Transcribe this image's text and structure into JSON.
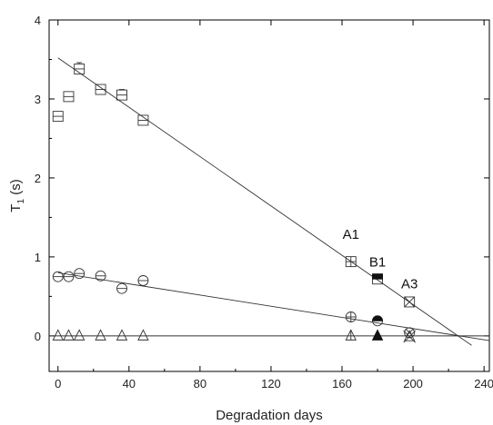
{
  "chart_data": {
    "type": "scatter",
    "title": "",
    "xlabel": "Degradation days",
    "ylabel": "T₁ (s)",
    "ylabel_main": "T",
    "ylabel_sub": "1",
    "ylabel_unit": " (s)",
    "xlim": [
      -5,
      243
    ],
    "ylim": [
      -0.45,
      4.0
    ],
    "xticks": [
      0,
      40,
      80,
      120,
      160,
      200,
      240
    ],
    "yticks": [
      0,
      1,
      2,
      3,
      4
    ],
    "grid": false,
    "legend": "none",
    "series": [
      {
        "marker": "square",
        "x": [
          0,
          6,
          12,
          24,
          36,
          48
        ],
        "y": [
          2.78,
          3.03,
          3.38,
          3.12,
          3.05,
          2.73
        ],
        "err": [
          0,
          0,
          0.08,
          0,
          0.07,
          0
        ],
        "fit": [
          [
            0,
            3.52
          ],
          [
            233,
            -0.12
          ]
        ]
      },
      {
        "marker": "circle",
        "x": [
          0,
          6,
          12,
          24,
          36,
          48
        ],
        "y": [
          0.75,
          0.75,
          0.79,
          0.76,
          0.6,
          0.7
        ],
        "err": [
          0,
          0,
          0,
          0,
          0,
          0
        ],
        "fit": [
          [
            0,
            0.8
          ],
          [
            243,
            -0.06
          ]
        ]
      },
      {
        "marker": "triangle",
        "x": [
          0,
          6,
          12,
          24,
          36,
          48
        ],
        "y": [
          0.0,
          0.0,
          0.0,
          0.0,
          0.0,
          0.0
        ],
        "err": [
          0,
          0,
          0,
          0,
          0,
          0
        ],
        "fit": [
          [
            -5,
            0.0
          ],
          [
            243,
            0.0
          ]
        ]
      },
      {
        "name": "A1",
        "x": [
          165,
          165,
          165
        ],
        "y": [
          0.94,
          0.24,
          0.0
        ],
        "markers": [
          "square-plus",
          "circle-plus",
          "triangle-vline"
        ]
      },
      {
        "name": "B1",
        "x": [
          180,
          180,
          180
        ],
        "y": [
          0.72,
          0.19,
          0.0
        ],
        "markers": [
          "square-half",
          "circle-half",
          "triangle-filled"
        ]
      },
      {
        "name": "A3",
        "x": [
          198,
          198,
          198
        ],
        "y": [
          0.43,
          0.04,
          -0.01
        ],
        "markers": [
          "square-x",
          "circle-x",
          "triangle-x"
        ]
      }
    ],
    "annotations": [
      {
        "text": "A1",
        "x": 165,
        "y": 1.23
      },
      {
        "text": "B1",
        "x": 180,
        "y": 0.88
      },
      {
        "text": "A3",
        "x": 198,
        "y": 0.6
      }
    ]
  }
}
